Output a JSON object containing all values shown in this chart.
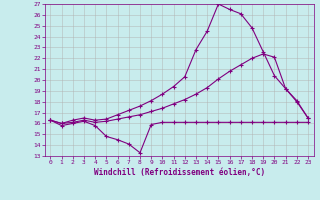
{
  "xlabel": "Windchill (Refroidissement éolien,°C)",
  "bg_color": "#c8eced",
  "line_color": "#800080",
  "grid_color": "#b0b0b0",
  "xlim": [
    -0.5,
    23.5
  ],
  "ylim": [
    13,
    27
  ],
  "xticks": [
    0,
    1,
    2,
    3,
    4,
    5,
    6,
    7,
    8,
    9,
    10,
    11,
    12,
    13,
    14,
    15,
    16,
    17,
    18,
    19,
    20,
    21,
    22,
    23
  ],
  "yticks": [
    13,
    14,
    15,
    16,
    17,
    18,
    19,
    20,
    21,
    22,
    23,
    24,
    25,
    26,
    27
  ],
  "series1_x": [
    0,
    1,
    2,
    3,
    4,
    5,
    6,
    7,
    8,
    9,
    10,
    11,
    12,
    13,
    14,
    15,
    16,
    17,
    18,
    19,
    20,
    21,
    22,
    23
  ],
  "series1_y": [
    16.3,
    15.8,
    16.0,
    16.2,
    15.8,
    14.8,
    14.5,
    14.1,
    13.3,
    15.9,
    16.1,
    16.1,
    16.1,
    16.1,
    16.1,
    16.1,
    16.1,
    16.1,
    16.1,
    16.1,
    16.1,
    16.1,
    16.1,
    16.1
  ],
  "series2_x": [
    0,
    1,
    2,
    3,
    4,
    5,
    6,
    7,
    8,
    9,
    10,
    11,
    12,
    13,
    14,
    15,
    16,
    17,
    18,
    19,
    20,
    21,
    22,
    23
  ],
  "series2_y": [
    16.3,
    16.0,
    16.1,
    16.3,
    16.1,
    16.2,
    16.4,
    16.6,
    16.8,
    17.1,
    17.4,
    17.8,
    18.2,
    18.7,
    19.3,
    20.1,
    20.8,
    21.4,
    22.0,
    22.4,
    22.1,
    19.2,
    18.0,
    16.5
  ],
  "series3_x": [
    0,
    1,
    2,
    3,
    4,
    5,
    6,
    7,
    8,
    9,
    10,
    11,
    12,
    13,
    14,
    15,
    16,
    17,
    18,
    19,
    20,
    21,
    22,
    23
  ],
  "series3_y": [
    16.3,
    16.0,
    16.3,
    16.5,
    16.3,
    16.4,
    16.8,
    17.2,
    17.6,
    18.1,
    18.7,
    19.4,
    20.3,
    22.8,
    24.5,
    27.0,
    26.5,
    26.1,
    24.8,
    22.6,
    20.4,
    19.2,
    18.1,
    16.5
  ]
}
